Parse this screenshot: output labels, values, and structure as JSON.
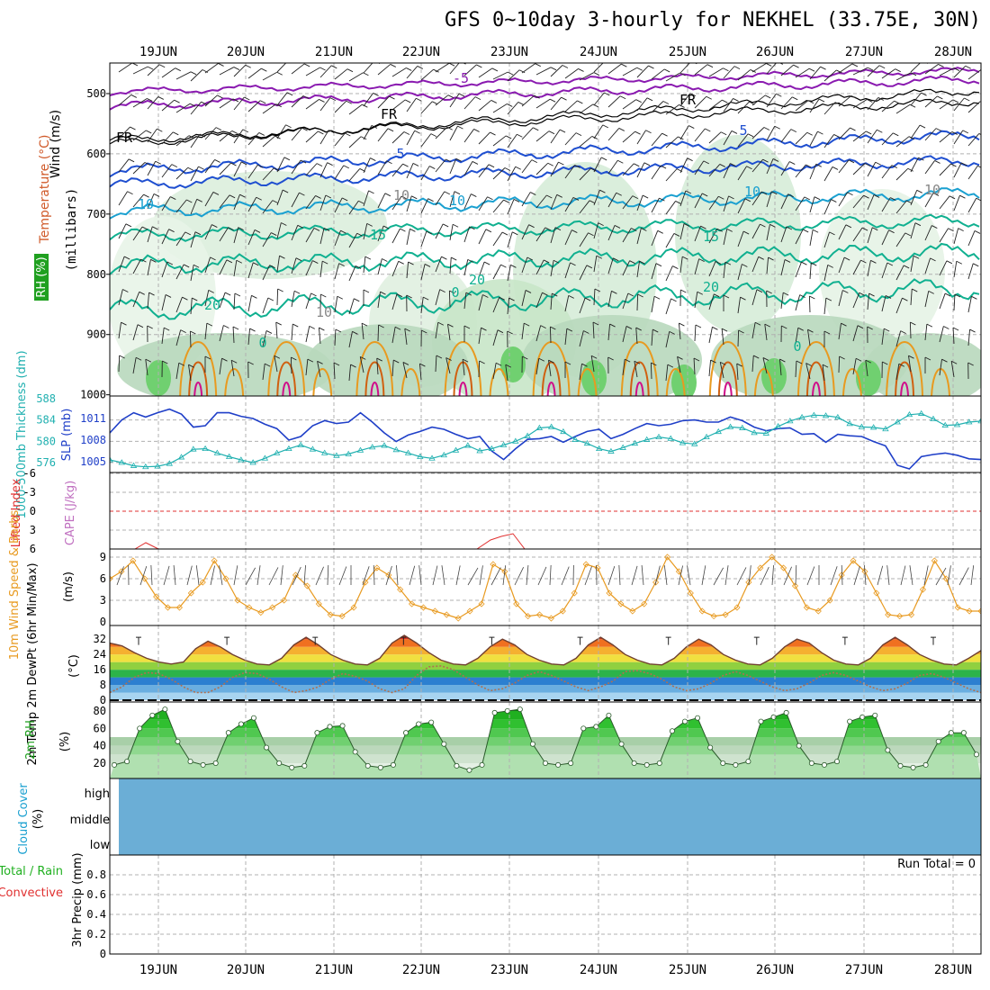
{
  "title": "GFS 0~10day 3-hourly for NEKHEL (33.75E, 30N)",
  "dates": [
    "19JUN",
    "20JUN",
    "21JUN",
    "22JUN",
    "23JUN",
    "24JUN",
    "25JUN",
    "26JUN",
    "27JUN",
    "28JUN"
  ],
  "colors": {
    "purple": "#8a1ab0",
    "blue": "#1f4fd0",
    "cyan": "#1aa0d0",
    "teal": "#10b090",
    "orange": "#e89a20",
    "darkorange": "#d06010",
    "red": "#e03030",
    "magenta": "#d0108a",
    "slp": "#1f3fc8",
    "thick": "#20b0b0",
    "cloud": "#6baed6",
    "grid": "#b0b0b0"
  },
  "panels": {
    "upper": {
      "ylabel_wind": "Wind (m/s)",
      "ylabel_temp": "Temperature (°C)",
      "ylabel_rh": "RH (%)",
      "ylabel_units": "(millibars)",
      "ticks": [
        "500",
        "600",
        "700",
        "800",
        "900",
        "1000"
      ],
      "contour_labels": [
        "-5",
        "FR",
        "FR",
        "5",
        "10",
        "10",
        "15",
        "20",
        "20",
        "-5",
        "FR",
        "5",
        "10",
        "15",
        "20",
        "10",
        "10",
        "10",
        "0",
        "0",
        "0"
      ]
    },
    "slp": {
      "ylabel_thick": "1000-500mb Thickness (dm)",
      "ylabel_slp": "SLP (mb)",
      "ticks_left": [
        "588",
        "584",
        "580",
        "576"
      ],
      "ticks_right": [
        "1011",
        "1008",
        "1005"
      ]
    },
    "cape": {
      "ylabel_li": "Lifted Index",
      "ylabel_cape": "CAPE (J/kg)",
      "ticks": [
        "-6",
        "-3",
        "0",
        "3",
        "6"
      ]
    },
    "wind10": {
      "ylabel": "10m Wind Speed & Barbs",
      "unit": "(m/s)",
      "ticks": [
        "9",
        "6",
        "3",
        "0"
      ]
    },
    "temp2m": {
      "ylabel": "2m Temp 2m DewPt (6hr Min/Max)",
      "unit": "(°C)",
      "ticks": [
        "32",
        "24",
        "16",
        "8",
        "0"
      ]
    },
    "rh2m": {
      "ylabel": "2m RH",
      "unit": "(%)",
      "ticks": [
        "80",
        "60",
        "40",
        "20"
      ]
    },
    "cloud": {
      "ylabel": "Cloud Cover",
      "unit": "(%)",
      "levels": [
        "high",
        "middle",
        "low"
      ]
    },
    "precip": {
      "ylabel_total": "Total / Rain",
      "ylabel_conv": "Convective",
      "ylabel": "3hr Precip (mm)",
      "ticks": [
        "0.8",
        "0.6",
        "0.4",
        "0.2",
        "0"
      ],
      "run_total": "Run Total = 0"
    }
  },
  "chart_data": [
    {
      "type": "line",
      "title": "SLP and 1000-500mb Thickness",
      "x_unit": "time (3-hourly)",
      "series": [
        {
          "name": "SLP (mb)",
          "values": [
            1009,
            1010.8,
            1011.8,
            1011.2,
            1011.8,
            1012.3,
            1011.6,
            1009.8,
            1010,
            1011.8,
            1011.8,
            1011.3,
            1011,
            1010.2,
            1009.6,
            1008,
            1008.5,
            1010,
            1010.7,
            1010.3,
            1010.5,
            1011.8,
            1010.5,
            1009,
            1007.8,
            1008.7,
            1009.2,
            1009.8,
            1009.5,
            1008.8,
            1008.2,
            1008.5,
            1006.5,
            1005.3,
            1006.8,
            1008.1,
            1008.2,
            1008.5,
            1007.7,
            1008.5,
            1009.2,
            1009.5,
            1008.2,
            1008.8,
            1009.6,
            1010.3,
            1010,
            1010.2,
            1010.7,
            1010.8,
            1010.5,
            1010.5,
            1011.2,
            1010.7,
            1009.8,
            1009.3,
            1009.6,
            1009.7,
            1008.8,
            1008.9,
            1007.7,
            1008.8,
            1008.6,
            1008.5,
            1007.8,
            1007.2,
            1004.5,
            1004,
            1005.7,
            1006,
            1006.2,
            1005.9,
            1005.4,
            1005.3
          ]
        },
        {
          "name": "1000-500mb Thickness (dm)",
          "values": [
            576.5,
            576,
            575.4,
            575.2,
            575.3,
            575.8,
            577,
            578.5,
            578.6,
            577.8,
            577.1,
            576.5,
            576,
            576.8,
            577.8,
            578.6,
            579.3,
            578.5,
            577.8,
            577.3,
            577.6,
            578.3,
            578.9,
            579.2,
            578.4,
            577.8,
            577.1,
            576.8,
            577.4,
            578.3,
            579.2,
            578.2,
            578.6,
            579.3,
            580,
            581,
            582.5,
            582.7,
            581.8,
            580.3,
            579.6,
            578.6,
            578.1,
            578.8,
            579.6,
            580.3,
            580.8,
            580.5,
            579.7,
            579.5,
            580.8,
            581.8,
            582.7,
            582.5,
            581.6,
            581.5,
            582.8,
            583.8,
            584.5,
            584.9,
            584.8,
            584.5,
            583.3,
            582.7,
            582.6,
            582.3,
            583.6,
            585,
            585.2,
            584.2,
            583,
            583.1,
            583.6,
            583.8
          ]
        }
      ],
      "ylim_left": [
        574.5,
        588
      ],
      "ylim_right": [
        1003,
        1014
      ]
    },
    {
      "type": "line",
      "title": "10m Wind Speed",
      "series": [
        {
          "name": "10m Wind Speed (m/s)",
          "values": [
            6,
            7,
            8.5,
            6,
            3.5,
            2,
            2,
            4,
            5.5,
            8.5,
            6,
            3,
            2,
            1.3,
            2,
            3,
            6.5,
            5,
            2.5,
            1,
            0.8,
            2,
            5.5,
            7.5,
            6.5,
            4.5,
            2.5,
            2,
            1.5,
            1,
            0.5,
            1.5,
            2.5,
            8,
            7,
            2.5,
            0.8,
            1,
            0.5,
            1.5,
            4,
            8,
            7.5,
            4,
            2.5,
            1.5,
            2.5,
            5.5,
            9,
            7,
            4,
            1.5,
            0.8,
            1,
            2,
            5.5,
            7.5,
            9,
            7.5,
            5,
            2,
            1.5,
            3,
            6.5,
            8.5,
            7,
            4,
            1,
            0.8,
            1,
            4.5,
            8.5,
            6,
            2,
            1.5,
            1.5
          ]
        }
      ],
      "ylim": [
        0,
        10
      ]
    },
    {
      "type": "line",
      "title": "2m Temp / 2m DewPt",
      "series": [
        {
          "name": "2m Temp (°C)",
          "values": [
            30,
            28.5,
            25,
            22,
            20,
            19,
            20,
            27,
            31,
            28,
            24,
            21,
            19,
            18.5,
            22,
            29,
            33,
            29,
            24,
            21,
            19,
            18.5,
            22,
            30,
            34,
            30,
            25,
            21,
            19,
            18.5,
            22,
            28,
            32,
            29,
            24,
            21,
            19,
            18.5,
            22,
            29,
            33,
            29,
            24,
            21,
            19,
            18.5,
            22,
            28,
            32,
            29,
            24,
            21,
            19,
            18.5,
            22,
            28,
            32,
            30,
            25,
            21,
            19,
            18.5,
            22,
            29,
            33,
            29,
            24,
            21,
            19,
            18.5,
            22,
            26
          ]
        },
        {
          "name": "2m DewPt (°C)",
          "values": [
            4,
            7,
            12,
            14.5,
            14,
            11,
            7,
            4,
            4,
            7,
            12,
            14.5,
            14,
            11,
            7,
            4,
            5,
            7,
            11,
            14,
            12.5,
            10,
            6,
            4,
            6,
            13,
            17.5,
            18,
            16,
            12,
            8,
            5,
            6,
            9,
            13,
            15,
            13,
            10,
            7,
            5,
            7,
            10,
            15,
            15.5,
            14,
            11,
            7,
            5,
            6,
            9,
            13,
            15,
            13,
            10,
            7,
            5,
            6,
            9,
            13,
            14.5,
            13,
            10,
            7,
            5,
            6,
            9,
            13,
            14,
            12,
            9,
            6,
            4,
            6,
            10
          ]
        }
      ],
      "ylim": [
        0,
        36
      ]
    },
    {
      "type": "area",
      "title": "2m RH",
      "series": [
        {
          "name": "2m RH (%)",
          "values": [
            18,
            22,
            60,
            75,
            82,
            45,
            22,
            18,
            20,
            55,
            65,
            72,
            38,
            20,
            15,
            17,
            55,
            62,
            63,
            33,
            17,
            15,
            18,
            55,
            65,
            67,
            42,
            17,
            12,
            18,
            78,
            80,
            82,
            42,
            20,
            18,
            20,
            60,
            62,
            75,
            42,
            20,
            18,
            20,
            57,
            68,
            72,
            38,
            20,
            18,
            22,
            68,
            73,
            78,
            40,
            20,
            18,
            22,
            68,
            73,
            75,
            35,
            17,
            15,
            18,
            45,
            55,
            55,
            30
          ]
        }
      ],
      "ylim": [
        0,
        90
      ]
    },
    {
      "type": "bar",
      "title": "3hr Precip (mm)",
      "series": [
        {
          "name": "3hr Precip (mm)",
          "values": [
            0
          ]
        }
      ],
      "ylim": [
        0,
        1
      ]
    }
  ]
}
